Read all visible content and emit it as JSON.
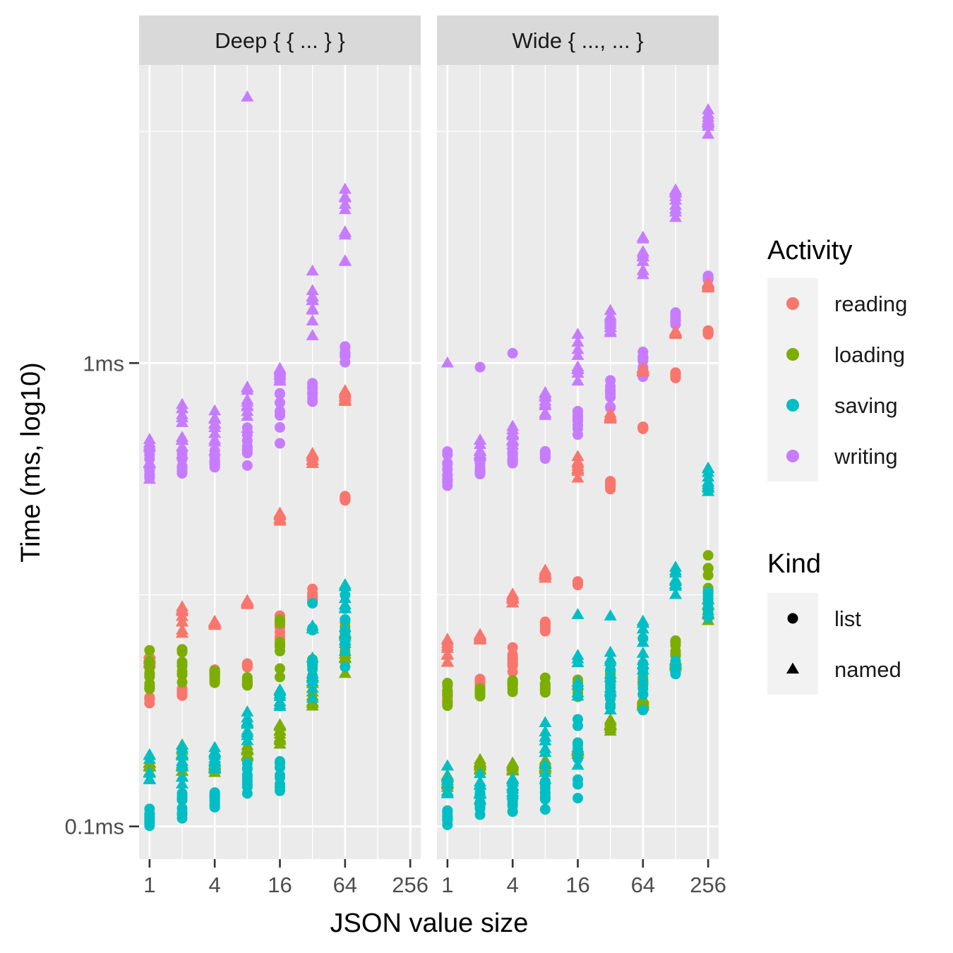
{
  "chart_data": {
    "type": "scatter",
    "facets": [
      "Deep { { ... } }",
      "Wide { ..., ... }"
    ],
    "xlabel": "JSON value size",
    "ylabel": "Time (ms, log10)",
    "x_scale": "log2",
    "y_scale": "log10",
    "xlim": [
      0.8,
      320
    ],
    "ylim": [
      0.085,
      4.4
    ],
    "x_ticks": [
      {
        "value": 1,
        "label": "1"
      },
      {
        "value": 4,
        "label": "4"
      },
      {
        "value": 16,
        "label": "16"
      },
      {
        "value": 64,
        "label": "64"
      },
      {
        "value": 256,
        "label": "256"
      }
    ],
    "y_ticks": [
      {
        "value": 0.1,
        "label": "0.1ms"
      },
      {
        "value": 1,
        "label": "1ms"
      }
    ],
    "grid": true,
    "legend_position": "right",
    "legends": {
      "activity": {
        "title": "Activity",
        "items": [
          {
            "label": "reading",
            "color": "#F8766D"
          },
          {
            "label": "loading",
            "color": "#7CAE00"
          },
          {
            "label": "saving",
            "color": "#00BFC4"
          },
          {
            "label": "writing",
            "color": "#C77CFF"
          }
        ]
      },
      "kind": {
        "title": "Kind",
        "items": [
          {
            "label": "list",
            "shape": "circle"
          },
          {
            "label": "named",
            "shape": "triangle"
          }
        ]
      }
    },
    "groups": [
      {
        "facet": 0,
        "activity": "writing",
        "kind": "named",
        "x": [
          1,
          2,
          4,
          8,
          16,
          32,
          64
        ],
        "y_low": [
          0.55,
          0.6,
          0.62,
          0.7,
          0.9,
          1.1,
          1.5
        ],
        "y_high": [
          0.72,
          0.85,
          0.85,
          0.95,
          1.0,
          1.65,
          2.7
        ]
      },
      {
        "facet": 0,
        "activity": "writing",
        "kind": "list",
        "x": [
          1,
          2,
          4,
          8,
          16,
          32,
          64
        ],
        "y_low": [
          0.54,
          0.55,
          0.58,
          0.6,
          0.66,
          0.82,
          1.0
        ],
        "y_high": [
          0.65,
          0.65,
          0.65,
          0.75,
          1.02,
          0.92,
          1.1
        ]
      },
      {
        "facet": 0,
        "activity": "writing",
        "kind": "named",
        "x": [
          8
        ],
        "y_low": [
          3.75
        ],
        "y_high": [
          3.75
        ]
      },
      {
        "facet": 0,
        "activity": "reading",
        "kind": "named",
        "x": [
          1,
          2,
          4,
          8,
          16,
          32,
          64
        ],
        "y_low": [
          0.22,
          0.25,
          0.27,
          0.3,
          0.45,
          0.6,
          0.8
        ],
        "y_high": [
          0.24,
          0.32,
          0.28,
          0.31,
          0.48,
          0.65,
          0.88
        ]
      },
      {
        "facet": 0,
        "activity": "reading",
        "kind": "list",
        "x": [
          1,
          2,
          4,
          8,
          16,
          32,
          64
        ],
        "y_low": [
          0.18,
          0.19,
          0.21,
          0.22,
          0.25,
          0.3,
          0.5
        ],
        "y_high": [
          0.22,
          0.2,
          0.22,
          0.225,
          0.29,
          0.33,
          0.52
        ]
      },
      {
        "facet": 0,
        "activity": "loading",
        "kind": "list",
        "x": [
          1,
          2,
          4,
          8,
          16,
          32,
          64
        ],
        "y_low": [
          0.19,
          0.2,
          0.2,
          0.2,
          0.21,
          0.22,
          0.22
        ],
        "y_high": [
          0.25,
          0.25,
          0.22,
          0.21,
          0.3,
          0.23,
          0.28
        ]
      },
      {
        "facet": 0,
        "activity": "loading",
        "kind": "named",
        "x": [
          1,
          2,
          4,
          8,
          16,
          32,
          64
        ],
        "y_low": [
          0.13,
          0.13,
          0.13,
          0.14,
          0.15,
          0.17,
          0.21
        ],
        "y_high": [
          0.14,
          0.15,
          0.14,
          0.15,
          0.17,
          0.22,
          0.28
        ]
      },
      {
        "facet": 0,
        "activity": "saving",
        "kind": "named",
        "x": [
          1,
          2,
          4,
          8,
          16,
          32,
          64
        ],
        "y_low": [
          0.12,
          0.12,
          0.13,
          0.15,
          0.18,
          0.17,
          0.22
        ],
        "y_high": [
          0.145,
          0.15,
          0.15,
          0.18,
          0.2,
          0.3,
          0.37
        ]
      },
      {
        "facet": 0,
        "activity": "saving",
        "kind": "list",
        "x": [
          1,
          2,
          4,
          8,
          16,
          32,
          64
        ],
        "y_low": [
          0.1,
          0.103,
          0.11,
          0.115,
          0.115,
          0.17,
          0.21
        ],
        "y_high": [
          0.11,
          0.12,
          0.12,
          0.14,
          0.15,
          0.32,
          0.33
        ]
      },
      {
        "facet": 1,
        "activity": "writing",
        "kind": "named",
        "x": [
          1,
          2,
          4,
          8,
          16,
          32,
          64,
          128,
          256
        ],
        "y_low": [
          1.0,
          0.6,
          0.65,
          0.75,
          0.85,
          1.15,
          1.5,
          2.0,
          3.0
        ],
        "y_high": [
          1.0,
          0.7,
          0.75,
          0.9,
          1.25,
          1.3,
          1.9,
          2.5,
          3.6
        ]
      },
      {
        "facet": 1,
        "activity": "writing",
        "kind": "list",
        "x": [
          1,
          2,
          4,
          8,
          16,
          32,
          64,
          128,
          256
        ],
        "y_low": [
          0.52,
          0.57,
          0.6,
          0.62,
          0.7,
          0.78,
          0.92,
          1.2,
          1.5
        ],
        "y_high": [
          0.65,
          0.62,
          0.65,
          0.65,
          0.82,
          0.93,
          1.1,
          1.3,
          1.55
        ]
      },
      {
        "facet": 1,
        "activity": "writing",
        "kind": "list",
        "x": [
          2,
          4
        ],
        "y_low": [
          0.98,
          1.05
        ],
        "y_high": [
          0.98,
          1.05
        ]
      },
      {
        "facet": 1,
        "activity": "reading",
        "kind": "named",
        "x": [
          1,
          2,
          4,
          8,
          16,
          32,
          64,
          128,
          256
        ],
        "y_low": [
          0.22,
          0.25,
          0.3,
          0.34,
          0.55,
          0.75,
          0.95,
          1.15,
          1.45
        ],
        "y_high": [
          0.26,
          0.26,
          0.32,
          0.36,
          0.65,
          0.78,
          0.98,
          1.18,
          1.5
        ]
      },
      {
        "facet": 1,
        "activity": "reading",
        "kind": "list",
        "x": [
          1,
          2,
          4,
          8,
          16,
          32,
          64,
          128,
          256
        ],
        "y_low": [
          0.18,
          0.2,
          0.21,
          0.26,
          0.33,
          0.53,
          0.72,
          0.92,
          1.15
        ],
        "y_high": [
          0.2,
          0.21,
          0.25,
          0.28,
          0.34,
          0.56,
          0.73,
          0.96,
          1.18
        ]
      },
      {
        "facet": 1,
        "activity": "loading",
        "kind": "list",
        "x": [
          1,
          2,
          4,
          8,
          16,
          32,
          64,
          128,
          256
        ],
        "y_low": [
          0.18,
          0.19,
          0.195,
          0.19,
          0.19,
          0.2,
          0.2,
          0.21,
          0.28
        ],
        "y_high": [
          0.21,
          0.2,
          0.21,
          0.21,
          0.21,
          0.22,
          0.21,
          0.26,
          0.4
        ]
      },
      {
        "facet": 1,
        "activity": "loading",
        "kind": "named",
        "x": [
          1,
          2,
          4,
          8,
          16,
          32,
          64,
          128,
          256
        ],
        "y_low": [
          0.12,
          0.13,
          0.13,
          0.13,
          0.14,
          0.16,
          0.18,
          0.22,
          0.27
        ],
        "y_high": [
          0.13,
          0.14,
          0.14,
          0.14,
          0.15,
          0.17,
          0.19,
          0.23,
          0.32
        ]
      },
      {
        "facet": 1,
        "activity": "saving",
        "kind": "named",
        "x": [
          1,
          2,
          4,
          8,
          16,
          32,
          64,
          128,
          256
        ],
        "y_low": [
          0.11,
          0.11,
          0.115,
          0.12,
          0.13,
          0.17,
          0.2,
          0.31,
          0.5
        ],
        "y_high": [
          0.14,
          0.13,
          0.13,
          0.17,
          0.29,
          0.3,
          0.3,
          0.37,
          0.62
        ]
      },
      {
        "facet": 1,
        "activity": "saving",
        "kind": "list",
        "x": [
          1,
          2,
          4,
          8,
          16,
          32,
          64,
          128,
          256
        ],
        "y_low": [
          0.1,
          0.105,
          0.107,
          0.107,
          0.115,
          0.16,
          0.17,
          0.21,
          0.28
        ],
        "y_high": [
          0.11,
          0.12,
          0.12,
          0.13,
          0.18,
          0.25,
          0.26,
          0.23,
          0.33
        ]
      }
    ]
  }
}
